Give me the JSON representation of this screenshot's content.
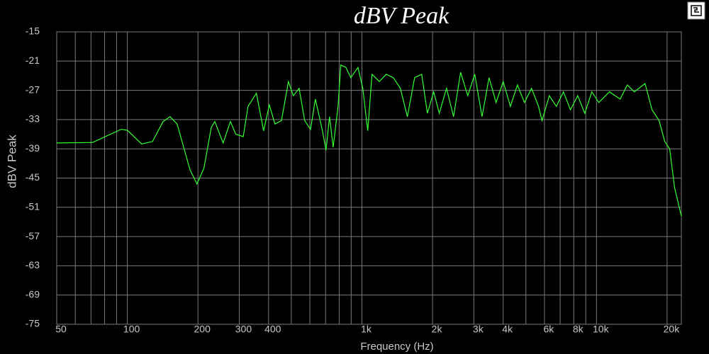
{
  "chart_data": {
    "type": "line",
    "title": "dBV Peak",
    "x_label": "Frequency (Hz)",
    "y_label": "dBV Peak",
    "xscale": "log",
    "grid": true,
    "color": "#33ff33",
    "xlim": [
      50,
      23000
    ],
    "ylim": [
      -75,
      -15
    ],
    "yticks": [
      -75,
      -69,
      -63,
      -57,
      -51,
      -45,
      -39,
      -33,
      -27,
      -21,
      -15
    ],
    "xticks": [
      50,
      100,
      200,
      300,
      400,
      {
        "value": 1000,
        "label": "1k"
      },
      {
        "value": 2000,
        "label": "2k"
      },
      {
        "value": 3000,
        "label": "3k"
      },
      {
        "value": 4000,
        "label": "4k"
      },
      {
        "value": 6000,
        "label": "6k"
      },
      {
        "value": 8000,
        "label": "8k"
      },
      {
        "value": 10000,
        "label": "10k"
      },
      {
        "value": 20000,
        "label": "20k"
      }
    ],
    "xminor": [
      60,
      70,
      80,
      90,
      500,
      600,
      700,
      800,
      900,
      5000,
      7000,
      9000
    ],
    "x": [
      50,
      71,
      94,
      100,
      115,
      128,
      142,
      152,
      163,
      185,
      198,
      212,
      228,
      236,
      256,
      275,
      290,
      312,
      327,
      355,
      381,
      403,
      426,
      454,
      486,
      510,
      540,
      570,
      604,
      633,
      679,
      703,
      728,
      754,
      791,
      813,
      855,
      897,
      962,
      1009,
      1059,
      1104,
      1186,
      1270,
      1361,
      1459,
      1563,
      1678,
      1798,
      1901,
      2023,
      2138,
      2294,
      2459,
      2636,
      2825,
      3027,
      3251,
      3483,
      3732,
      4000,
      4295,
      4602,
      4931,
      5284,
      5662,
      5861,
      6295,
      6745,
      7227,
      7744,
      8317,
      8912,
      9549,
      10232,
      11350,
      12618,
      13521,
      14487,
      16105,
      17257,
      18490,
      19541,
      20512,
      21527,
      23000
    ],
    "values": [
      -37.8,
      -37.7,
      -35.0,
      -35.2,
      -38.0,
      -37.5,
      -33.4,
      -32.4,
      -33.9,
      -43.3,
      -46.2,
      -43.0,
      -34.6,
      -33.4,
      -37.8,
      -33.4,
      -36.0,
      -36.5,
      -30.3,
      -27.6,
      -35.3,
      -30.0,
      -33.9,
      -33.2,
      -25.2,
      -28.1,
      -26.6,
      -33.2,
      -35.0,
      -28.8,
      -35.3,
      -39.3,
      -32.4,
      -38.7,
      -30.3,
      -21.8,
      -22.3,
      -24.4,
      -22.3,
      -26.6,
      -35.3,
      -23.7,
      -25.2,
      -23.7,
      -24.4,
      -26.6,
      -32.4,
      -24.4,
      -23.7,
      -31.7,
      -27.3,
      -31.7,
      -26.6,
      -32.4,
      -23.3,
      -28.1,
      -23.7,
      -32.4,
      -24.4,
      -29.5,
      -25.2,
      -30.3,
      -25.9,
      -29.5,
      -26.6,
      -30.3,
      -33.2,
      -28.1,
      -30.3,
      -27.3,
      -31.0,
      -28.1,
      -31.7,
      -27.3,
      -29.5,
      -27.3,
      -28.8,
      -25.9,
      -27.3,
      -25.6,
      -31.0,
      -33.2,
      -37.5,
      -39.0,
      -47.0,
      -52.8
    ]
  }
}
